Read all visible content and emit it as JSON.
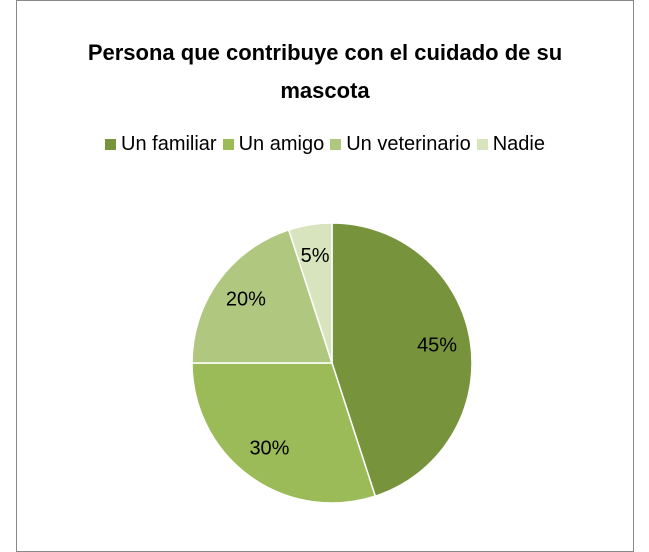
{
  "chart_data": {
    "type": "pie",
    "title": "Persona que contribuye con el cuidado de su mascota",
    "categories": [
      "Un familiar",
      "Un amigo",
      "Un veterinario",
      "Nadie"
    ],
    "values": [
      45,
      30,
      20,
      5
    ],
    "value_labels": [
      "45%",
      "30%",
      "20%",
      "5%"
    ],
    "colors": [
      "#77933c",
      "#9bbb59",
      "#afc77f",
      "#d7e4bd"
    ],
    "legend": "top"
  }
}
